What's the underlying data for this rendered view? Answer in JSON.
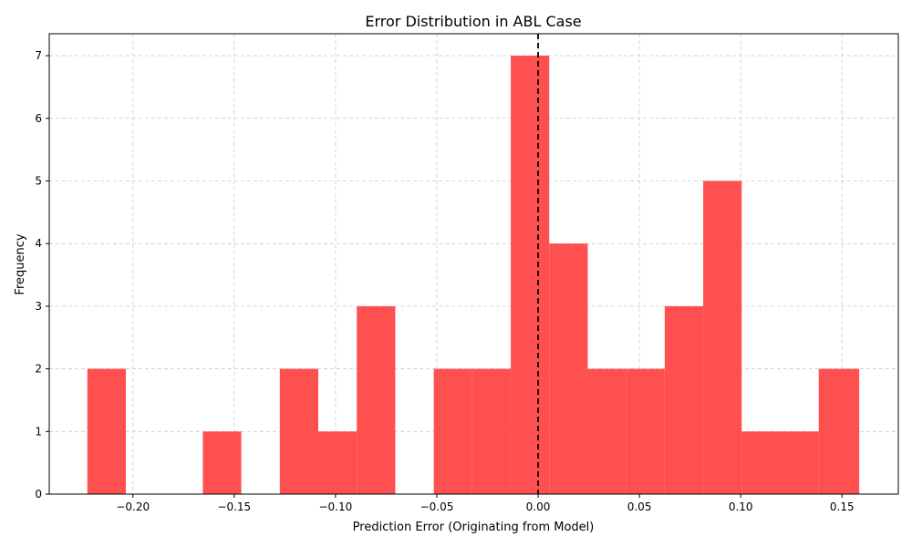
{
  "chart_data": {
    "type": "bar",
    "title": "Error Distribution in ABL Case",
    "xlabel": "Prediction Error (Originating from Model)",
    "ylabel": "Frequency",
    "xlim": [
      -0.2413,
      0.1778
    ],
    "ylim": [
      0,
      7.35
    ],
    "grid": true,
    "bar_color": "#ff4c4c",
    "reference_line": {
      "x": 0,
      "style": "dashed",
      "color": "#000000"
    },
    "bin_edges": [
      -0.2225,
      -0.2035,
      -0.1845,
      -0.1655,
      -0.1465,
      -0.1275,
      -0.1085,
      -0.0895,
      -0.0705,
      -0.0515,
      -0.0325,
      -0.0135,
      0.0055,
      0.0245,
      0.0435,
      0.0625,
      0.0815,
      0.1005,
      0.1195,
      0.1385,
      0.1585
    ],
    "counts": [
      2,
      0,
      0,
      1,
      0,
      2,
      1,
      3,
      0,
      2,
      2,
      7,
      4,
      2,
      2,
      3,
      5,
      1,
      1,
      2
    ],
    "x_ticks": [
      -0.2,
      -0.15,
      -0.1,
      -0.05,
      0.0,
      0.05,
      0.1,
      0.15
    ],
    "x_tick_labels": [
      "−0.20",
      "−0.15",
      "−0.10",
      "−0.05",
      "0.00",
      "0.05",
      "0.10",
      "0.15"
    ],
    "y_ticks": [
      0,
      1,
      2,
      3,
      4,
      5,
      6,
      7
    ],
    "y_tick_labels": [
      "0",
      "1",
      "2",
      "3",
      "4",
      "5",
      "6",
      "7"
    ]
  }
}
